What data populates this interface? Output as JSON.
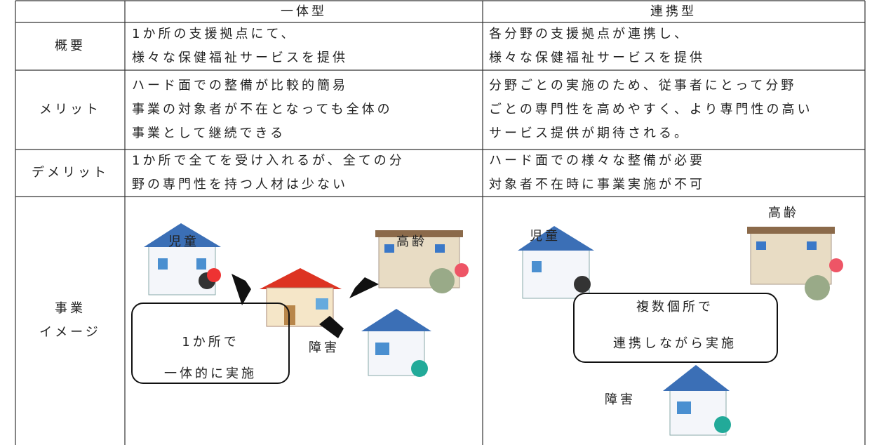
{
  "table": {
    "header": [
      "一体型",
      "連携型"
    ],
    "rows": [
      {
        "label": "概要",
        "cells": [
          [
            "1か所の支援拠点にて、",
            "様々な保健福祉サービスを提供"
          ],
          [
            "各分野の支援拠点が連携し、",
            "様々な保健福祉サービスを提供"
          ]
        ]
      },
      {
        "label": "メリット",
        "cells": [
          [
            "ハード面での整備が比較的簡易",
            "事業の対象者が不在となっても全体の",
            "事業として継続できる"
          ],
          [
            "分野ごとの実施のため、従事者にとって分野",
            "ごとの専門性を高めやすく、より専門性の高い",
            "サービス提供が期待される。"
          ]
        ]
      },
      {
        "label": "デメリット",
        "cells": [
          [
            "1か所で全てを受け入れるが、全ての分",
            "野の専門性を持つ人材は少ない"
          ],
          [
            "ハード面での様々な整備が必要",
            "対象者不在時に事業実施が不可"
          ]
        ]
      }
    ],
    "image_row": {
      "label": [
        "事業",
        "イメージ"
      ],
      "integrated": {
        "child": "児童",
        "elderly": "高齢",
        "disability": "障害",
        "box": [
          "1か所で",
          "一体的に実施"
        ]
      },
      "linked": {
        "child": "児童",
        "elderly": "高齢",
        "disability": "障害",
        "box": [
          "複数個所で",
          "連携しながら実施"
        ]
      }
    }
  }
}
